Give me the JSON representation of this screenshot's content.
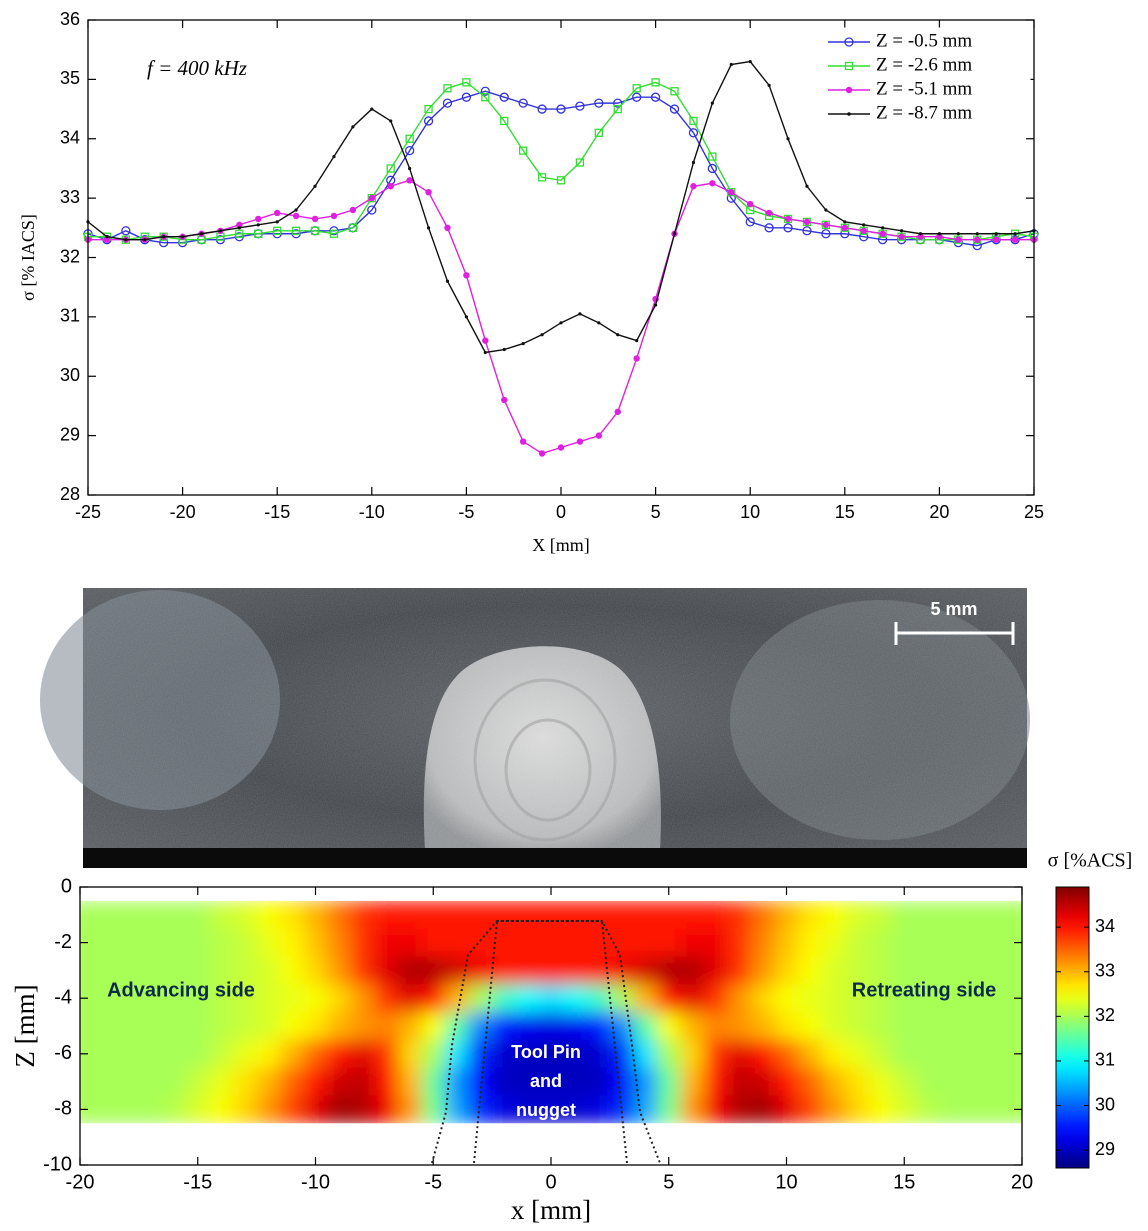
{
  "chart_data": [
    {
      "type": "line",
      "annotation": "f = 400 kHz",
      "x_label": "X [mm]",
      "y_label": "σ [% IACS]",
      "x": [
        -25,
        -24,
        -23,
        -22,
        -21,
        -20,
        -19,
        -18,
        -17,
        -16,
        -15,
        -14,
        -13,
        -12,
        -11,
        -10,
        -9,
        -8,
        -7,
        -6,
        -5,
        -4,
        -3,
        -2,
        -1,
        0,
        1,
        2,
        3,
        4,
        5,
        6,
        7,
        8,
        9,
        10,
        11,
        12,
        13,
        14,
        15,
        16,
        17,
        18,
        19,
        20,
        21,
        22,
        23,
        24,
        25
      ],
      "xlim": [
        -25,
        25
      ],
      "xticks": [
        -25,
        -20,
        -15,
        -10,
        -5,
        0,
        5,
        10,
        15,
        20,
        25
      ],
      "ylim": [
        28,
        36
      ],
      "yticks": [
        28,
        29,
        30,
        31,
        32,
        33,
        34,
        35,
        36
      ],
      "legend": "upper right",
      "series": [
        {
          "name": "Z = -0.5 mm",
          "color": "#3333dd",
          "marker": "circle",
          "values": [
            32.4,
            32.3,
            32.45,
            32.3,
            32.25,
            32.25,
            32.3,
            32.3,
            32.35,
            32.4,
            32.4,
            32.4,
            32.45,
            32.45,
            32.5,
            32.8,
            33.3,
            33.8,
            34.3,
            34.6,
            34.7,
            34.8,
            34.7,
            34.6,
            34.5,
            34.5,
            34.55,
            34.6,
            34.6,
            34.7,
            34.7,
            34.5,
            34.1,
            33.5,
            33,
            32.6,
            32.5,
            32.5,
            32.45,
            32.4,
            32.4,
            32.35,
            32.3,
            32.3,
            32.3,
            32.3,
            32.25,
            32.2,
            32.3,
            32.3,
            32.4
          ]
        },
        {
          "name": "Z = -2.6 mm",
          "color": "#33dd33",
          "marker": "square",
          "values": [
            32.35,
            32.35,
            32.3,
            32.35,
            32.35,
            32.3,
            32.3,
            32.35,
            32.4,
            32.4,
            32.45,
            32.45,
            32.45,
            32.4,
            32.5,
            33,
            33.5,
            34,
            34.5,
            34.85,
            34.95,
            34.7,
            34.3,
            33.8,
            33.35,
            33.3,
            33.6,
            34.1,
            34.5,
            34.85,
            34.95,
            34.8,
            34.3,
            33.7,
            33.1,
            32.8,
            32.7,
            32.65,
            32.6,
            32.55,
            32.5,
            32.45,
            32.4,
            32.35,
            32.3,
            32.3,
            32.3,
            32.3,
            32.35,
            32.4,
            32.35
          ]
        },
        {
          "name": "Z = -5.1 mm",
          "color": "#e020e0",
          "marker": "dot",
          "values": [
            32.3,
            32.3,
            32.3,
            32.3,
            32.35,
            32.35,
            32.4,
            32.45,
            32.55,
            32.65,
            32.75,
            32.7,
            32.65,
            32.7,
            32.8,
            33,
            33.2,
            33.3,
            33.1,
            32.5,
            31.7,
            30.6,
            29.6,
            28.9,
            28.7,
            28.8,
            28.9,
            29,
            29.4,
            30.3,
            31.3,
            32.4,
            33.2,
            33.25,
            33.1,
            32.9,
            32.75,
            32.65,
            32.6,
            32.55,
            32.5,
            32.45,
            32.4,
            32.35,
            32.35,
            32.35,
            32.3,
            32.3,
            32.3,
            32.3,
            32.3
          ]
        },
        {
          "name": "Z = -8.7 mm",
          "color": "#111111",
          "marker": "point",
          "values": [
            32.6,
            32.35,
            32.3,
            32.3,
            32.35,
            32.35,
            32.4,
            32.45,
            32.5,
            32.55,
            32.6,
            32.8,
            33.2,
            33.7,
            34.2,
            34.5,
            34.3,
            33.5,
            32.5,
            31.6,
            31,
            30.4,
            30.45,
            30.55,
            30.7,
            30.9,
            31.05,
            30.9,
            30.7,
            30.6,
            31.2,
            32.4,
            33.6,
            34.6,
            35.25,
            35.3,
            34.9,
            34,
            33.2,
            32.8,
            32.6,
            32.55,
            32.5,
            32.45,
            32.4,
            32.4,
            32.4,
            32.4,
            32.4,
            32.4,
            32.45
          ]
        }
      ]
    },
    {
      "type": "heatmap",
      "x_label": "x [mm]",
      "y_label": "Z [mm]",
      "colorbar_label": "σ [%ACS]",
      "colormap": "jet",
      "annotations": [
        "Advancing side",
        "Retreating side",
        "Tool Pin",
        "and",
        "nugget"
      ],
      "xlim": [
        -20,
        20
      ],
      "xticks": [
        -20,
        -15,
        -10,
        -5,
        0,
        5,
        10,
        15,
        20
      ],
      "ylim": [
        -10,
        0
      ],
      "yticks": [
        0,
        -2,
        -4,
        -6,
        -8,
        -10
      ],
      "clim": [
        28.6,
        34.9
      ],
      "cticks": [
        29,
        30,
        31,
        32,
        33,
        34
      ],
      "x": [
        -20,
        -19,
        -18,
        -17,
        -16,
        -15,
        -14,
        -13,
        -12,
        -11,
        -10,
        -9,
        -8,
        -7,
        -6,
        -5,
        -4,
        -3,
        -2,
        -1,
        0,
        1,
        2,
        3,
        4,
        5,
        6,
        7,
        8,
        9,
        10,
        11,
        12,
        13,
        14,
        15,
        16,
        17,
        18,
        19,
        20
      ],
      "y": [
        -1,
        -2,
        -3,
        -4,
        -5,
        -6,
        -7,
        -8
      ],
      "values": [
        [
          32,
          32,
          32,
          32,
          32,
          32,
          32.2,
          32.3,
          32.5,
          32.7,
          33,
          33.4,
          33.8,
          34,
          34,
          34,
          34,
          34,
          34,
          34,
          34,
          34,
          34,
          34,
          34,
          34,
          34,
          34,
          33.8,
          33.4,
          33,
          32.7,
          32.5,
          32.3,
          32.2,
          32,
          32,
          32,
          32,
          32,
          32
        ],
        [
          32,
          32,
          32,
          32,
          32,
          32,
          32.1,
          32.2,
          32.4,
          32.6,
          32.9,
          33.3,
          33.8,
          34.2,
          34.2,
          34,
          34,
          34,
          34,
          34,
          34,
          34,
          34,
          34,
          34,
          34,
          34.2,
          34.2,
          33.8,
          33.3,
          32.9,
          32.6,
          32.4,
          32.2,
          32.1,
          32,
          32,
          32,
          32,
          32,
          32
        ],
        [
          32,
          32,
          32,
          32,
          32,
          32,
          32.1,
          32.2,
          32.3,
          32.5,
          32.8,
          33.2,
          33.8,
          34.3,
          34.6,
          34.6,
          34.4,
          34.2,
          34,
          34,
          34,
          34,
          34,
          34.2,
          34.4,
          34.6,
          34.6,
          34.3,
          33.8,
          33.2,
          32.8,
          32.5,
          32.3,
          32.2,
          32.1,
          32,
          32,
          32,
          32,
          32,
          32
        ],
        [
          32,
          32,
          32,
          32,
          32,
          32,
          32.1,
          32.2,
          32.3,
          32.4,
          32.5,
          32.8,
          33.2,
          33.8,
          34.3,
          34,
          33,
          32,
          31.3,
          31,
          30.8,
          31,
          31.3,
          32,
          33,
          34,
          34.3,
          33.8,
          33.2,
          32.8,
          32.5,
          32.4,
          32.3,
          32.2,
          32.1,
          32,
          32,
          32,
          32,
          32,
          32
        ],
        [
          32,
          32,
          32,
          32,
          32,
          32,
          32.1,
          32.2,
          32.3,
          32.5,
          32.7,
          33,
          33.2,
          33.3,
          33,
          32.5,
          31.5,
          30.2,
          29.5,
          29.3,
          29.2,
          29.3,
          29.5,
          30.2,
          31.5,
          32.5,
          33,
          33.3,
          33.2,
          33,
          32.7,
          32.5,
          32.3,
          32.2,
          32.1,
          32,
          32,
          32,
          32,
          32,
          32
        ],
        [
          32,
          32,
          32,
          32,
          32,
          32,
          32.2,
          32.4,
          32.6,
          33,
          33.5,
          34,
          34.3,
          33.8,
          32.8,
          32,
          30.8,
          29.6,
          29.1,
          29,
          29,
          29,
          29.1,
          29.6,
          30.8,
          32,
          32.8,
          33.8,
          34.3,
          34,
          33.5,
          33,
          32.6,
          32.4,
          32.2,
          32,
          32,
          32,
          32,
          32,
          32
        ],
        [
          32,
          32,
          32,
          32,
          32,
          32.2,
          32.4,
          32.7,
          33,
          33.5,
          34,
          34.4,
          34.5,
          34,
          33,
          31.6,
          30.3,
          29.4,
          29,
          29,
          29,
          29,
          29,
          29.4,
          30.3,
          31.6,
          33,
          34,
          34.5,
          34.4,
          34,
          33.5,
          33,
          32.7,
          32.4,
          32.2,
          32,
          32,
          32,
          32,
          32
        ],
        [
          32,
          32,
          32,
          32,
          32.1,
          32.3,
          32.5,
          32.8,
          33.2,
          33.7,
          34.3,
          34.7,
          34.6,
          34.2,
          33.2,
          31.7,
          30.4,
          29.6,
          29.2,
          29.1,
          29.1,
          29.1,
          29.2,
          29.6,
          30.4,
          31.7,
          33.2,
          34.2,
          34.6,
          34.7,
          34.3,
          33.7,
          33.2,
          32.8,
          32.5,
          32.3,
          32.1,
          32,
          32,
          32,
          32
        ]
      ]
    }
  ],
  "photo": {
    "scale_bar_label": "5 mm"
  }
}
